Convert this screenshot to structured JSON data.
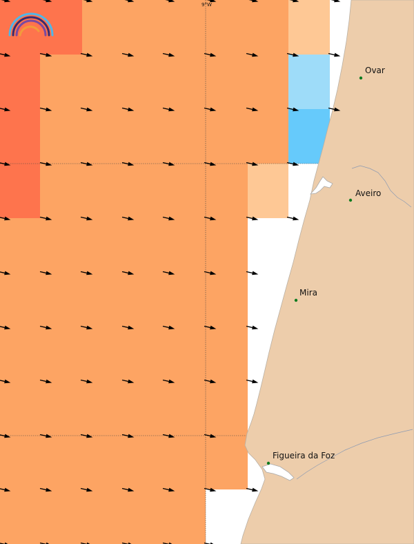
{
  "map": {
    "meridian_label": "9°W",
    "colors": {
      "ocean": "#ffffff",
      "land": "#edcdab",
      "coast": "#aaaaaa",
      "orange": "#fda463",
      "red_orange": "#fe744d",
      "pale_orange": "#fec895",
      "light_blue": "#9edcf9",
      "blue": "#66cafb",
      "arrow": "#000000",
      "city_marker": "#0a7a1e"
    },
    "cities": [
      {
        "name": "Ovar"
      },
      {
        "name": "Aveiro"
      },
      {
        "name": "Mira"
      },
      {
        "name": "Figueira da Foz"
      }
    ]
  }
}
